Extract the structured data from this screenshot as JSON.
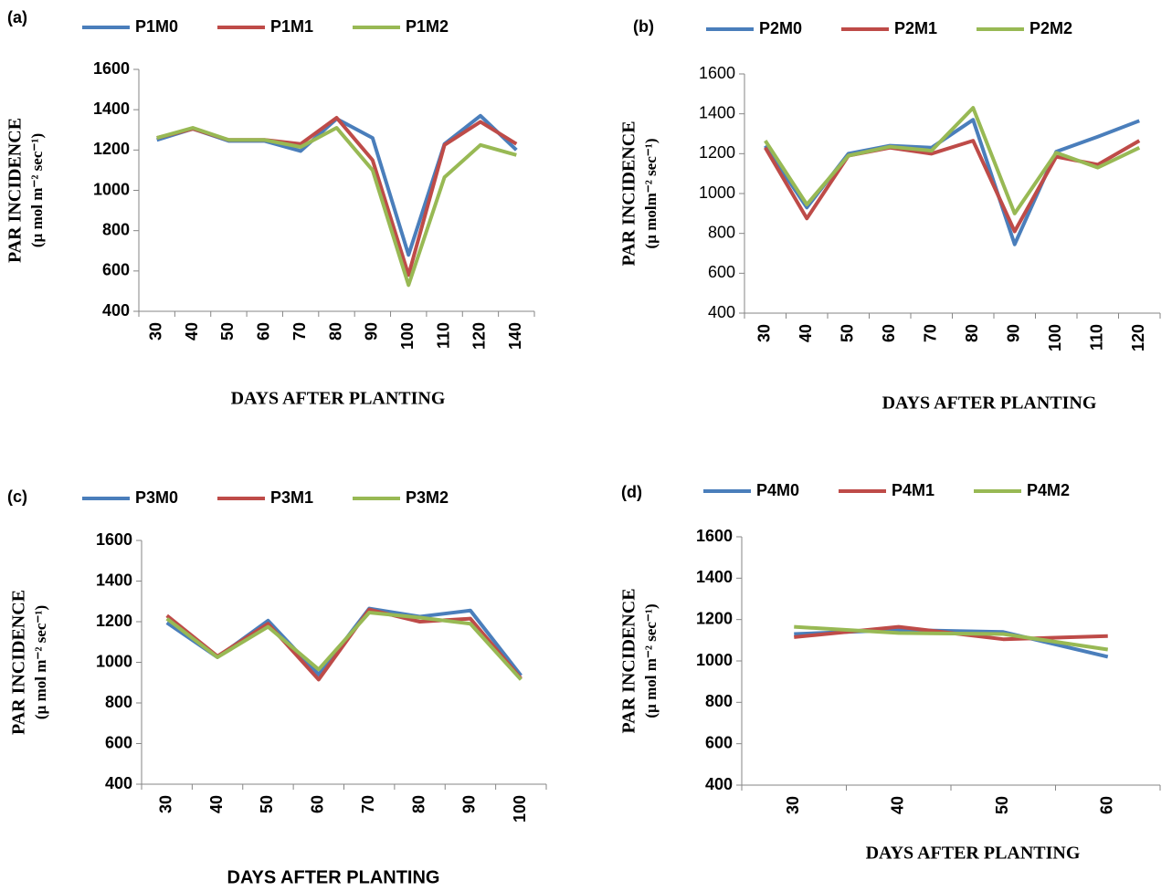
{
  "chart_data": [
    {
      "type": "line",
      "label": "(a)",
      "x_title": "DAYS AFTER PLANTING",
      "y_title": "PAR INCIDENCE",
      "y_subtitle": "(µ mol m⁻² sec⁻¹)",
      "categories": [
        "30",
        "40",
        "50",
        "60",
        "70",
        "80",
        "90",
        "100",
        "110",
        "120",
        "140"
      ],
      "ylim": [
        400,
        1600
      ],
      "yticks": [
        400,
        600,
        800,
        1000,
        1200,
        1400,
        1600
      ],
      "series": [
        {
          "name": "P1M0",
          "color": "#4a7ebb",
          "values": [
            1250,
            1305,
            1245,
            1245,
            1195,
            1355,
            1260,
            680,
            1230,
            1370,
            1200
          ]
        },
        {
          "name": "P1M1",
          "color": "#be4b48",
          "values": [
            1260,
            1305,
            1250,
            1250,
            1230,
            1360,
            1150,
            580,
            1225,
            1340,
            1230
          ]
        },
        {
          "name": "P1M2",
          "color": "#98b954",
          "values": [
            1260,
            1310,
            1250,
            1250,
            1215,
            1310,
            1100,
            530,
            1065,
            1225,
            1175
          ]
        }
      ]
    },
    {
      "type": "line",
      "label": "(b)",
      "x_title": "DAYS AFTER PLANTING",
      "y_title": "PAR INCIDENCE",
      "y_subtitle": "(µ molm⁻² sec⁻¹)",
      "categories": [
        "30",
        "40",
        "50",
        "60",
        "70",
        "80",
        "90",
        "100",
        "110",
        "120"
      ],
      "ylim": [
        400,
        1600
      ],
      "yticks": [
        400,
        600,
        800,
        1000,
        1200,
        1400,
        1600
      ],
      "series": [
        {
          "name": "P2M0",
          "color": "#4a7ebb",
          "values": [
            1240,
            930,
            1200,
            1240,
            1230,
            1370,
            745,
            1210,
            1285,
            1365
          ]
        },
        {
          "name": "P2M1",
          "color": "#be4b48",
          "values": [
            1230,
            875,
            1190,
            1230,
            1200,
            1265,
            810,
            1185,
            1145,
            1265
          ]
        },
        {
          "name": "P2M2",
          "color": "#98b954",
          "values": [
            1265,
            945,
            1190,
            1235,
            1215,
            1430,
            900,
            1205,
            1130,
            1230
          ]
        }
      ]
    },
    {
      "type": "line",
      "label": "(c)",
      "x_title": "DAYS AFTER PLANTING",
      "y_title": "PAR INCIDENCE",
      "y_subtitle": "(µ mol m⁻² sec⁻¹)",
      "categories": [
        "30",
        "40",
        "50",
        "60",
        "70",
        "80",
        "90",
        "100"
      ],
      "ylim": [
        400,
        1600
      ],
      "yticks": [
        400,
        600,
        800,
        1000,
        1200,
        1400,
        1600
      ],
      "series": [
        {
          "name": "P3M0",
          "color": "#4a7ebb",
          "values": [
            1195,
            1025,
            1205,
            940,
            1265,
            1225,
            1255,
            935
          ]
        },
        {
          "name": "P3M1",
          "color": "#be4b48",
          "values": [
            1230,
            1030,
            1190,
            915,
            1260,
            1200,
            1215,
            920
          ]
        },
        {
          "name": "P3M2",
          "color": "#98b954",
          "values": [
            1215,
            1025,
            1175,
            965,
            1245,
            1220,
            1190,
            915
          ]
        }
      ]
    },
    {
      "type": "line",
      "label": "(d)",
      "x_title": "DAYS AFTER PLANTING",
      "y_title": "PAR INCIDENCE",
      "y_subtitle": "(µ mol m⁻² sec⁻¹)",
      "categories": [
        "30",
        "40",
        "50",
        "60"
      ],
      "ylim": [
        400,
        1600
      ],
      "yticks": [
        400,
        600,
        800,
        1000,
        1200,
        1400,
        1600
      ],
      "series": [
        {
          "name": "P4M0",
          "color": "#4a7ebb",
          "values": [
            1130,
            1150,
            1140,
            1020
          ]
        },
        {
          "name": "P4M1",
          "color": "#be4b48",
          "values": [
            1115,
            1165,
            1105,
            1120
          ]
        },
        {
          "name": "P4M2",
          "color": "#98b954",
          "values": [
            1165,
            1135,
            1130,
            1055
          ]
        }
      ]
    }
  ]
}
